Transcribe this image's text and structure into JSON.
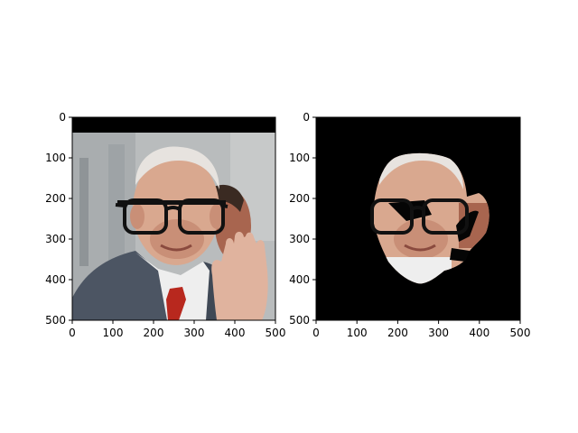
{
  "chart_data": [
    {
      "type": "image",
      "description_key": "left-panel",
      "xlim": [
        0,
        500
      ],
      "ylim": [
        500,
        0
      ],
      "xticks": [
        0,
        100,
        200,
        300,
        400,
        500
      ],
      "yticks": [
        0,
        100,
        200,
        300,
        400,
        500
      ],
      "xtick_labels": [
        "0",
        "100",
        "200",
        "300",
        "400",
        "500"
      ],
      "ytick_labels": [
        "0",
        "100",
        "200",
        "300",
        "400",
        "500"
      ]
    },
    {
      "type": "image",
      "description_key": "right-panel",
      "xlim": [
        0,
        500
      ],
      "ylim": [
        500,
        0
      ],
      "xticks": [
        0,
        100,
        200,
        300,
        400,
        500
      ],
      "yticks": [
        0,
        100,
        200,
        300,
        400,
        500
      ],
      "xtick_labels": [
        "0",
        "100",
        "200",
        "300",
        "400",
        "500"
      ],
      "ytick_labels": [
        "0",
        "100",
        "200",
        "300",
        "400",
        "500"
      ]
    }
  ],
  "colors": {
    "background": "#000000",
    "suit": "#4c5563",
    "shirt": "#eeeeee",
    "tie": "#b8281e",
    "skin": "#d9a88f",
    "hair": "#e7e3df",
    "glasses": "#111111",
    "bg_blur": "#b9bcbd"
  }
}
